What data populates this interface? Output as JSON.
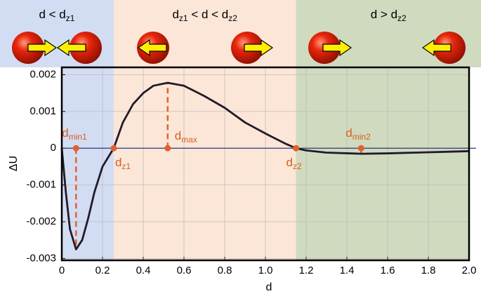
{
  "chart_data": {
    "type": "line",
    "xlabel": "d",
    "ylabel": "ΔU",
    "x": [
      0.0,
      0.02,
      0.04,
      0.07,
      0.1,
      0.13,
      0.16,
      0.2,
      0.255,
      0.3,
      0.35,
      0.4,
      0.45,
      0.52,
      0.6,
      0.7,
      0.8,
      0.9,
      1.0,
      1.1,
      1.15,
      1.2,
      1.3,
      1.47,
      1.6,
      1.8,
      2.0
    ],
    "series": [
      {
        "color": "#231a2a",
        "values": [
          0,
          -0.0012,
          -0.0022,
          -0.00275,
          -0.0025,
          -0.0019,
          -0.0012,
          -0.0005,
          0,
          0.0007,
          0.0012,
          0.0015,
          0.0017,
          0.00178,
          0.0017,
          0.00142,
          0.0011,
          0.0007,
          0.0004,
          0.00012,
          0,
          -6e-05,
          -0.00012,
          -0.00015,
          -0.00014,
          -0.00011,
          -8e-05
        ]
      }
    ],
    "xlim": [
      0,
      2
    ],
    "ylim": [
      -0.00305,
      0.0022
    ],
    "xticks": [
      0,
      0.2,
      0.4,
      0.6,
      0.8,
      {
        "value": 1,
        "label": "1.0"
      },
      1.2,
      1.4,
      1.6,
      1.8,
      {
        "value": 2,
        "label": "2.0"
      }
    ],
    "yticks": [
      -0.003,
      -0.002,
      -0.001,
      0,
      0.001,
      0.002
    ],
    "grid": true,
    "regions": [
      {
        "range": [
          0,
          0.255
        ],
        "color": "#d2ddf3",
        "label": [
          "d < d",
          "z1"
        ]
      },
      {
        "range": [
          0.255,
          1.15
        ],
        "color": "#fce6d7",
        "label": [
          "d",
          "z1",
          " < d < d",
          "z2"
        ]
      },
      {
        "range": [
          1.15,
          2
        ],
        "color": "#d0dabf",
        "label": [
          "d > d",
          "z2"
        ]
      }
    ],
    "annotations": [
      {
        "x": 0.07,
        "y": 0,
        "label": [
          "d",
          "min1"
        ],
        "line_to": -0.00275
      },
      {
        "x": 0.255,
        "y": 0,
        "label": [
          "d",
          "z1"
        ]
      },
      {
        "x": 0.52,
        "y": 0,
        "label": [
          "d",
          "max"
        ],
        "line_to": 0.00178
      },
      {
        "x": 1.15,
        "y": 0,
        "label": [
          "d",
          "z2"
        ]
      },
      {
        "x": 1.47,
        "y": 0,
        "label": [
          "d",
          "min2"
        ],
        "line_to": -0.00015
      }
    ]
  }
}
